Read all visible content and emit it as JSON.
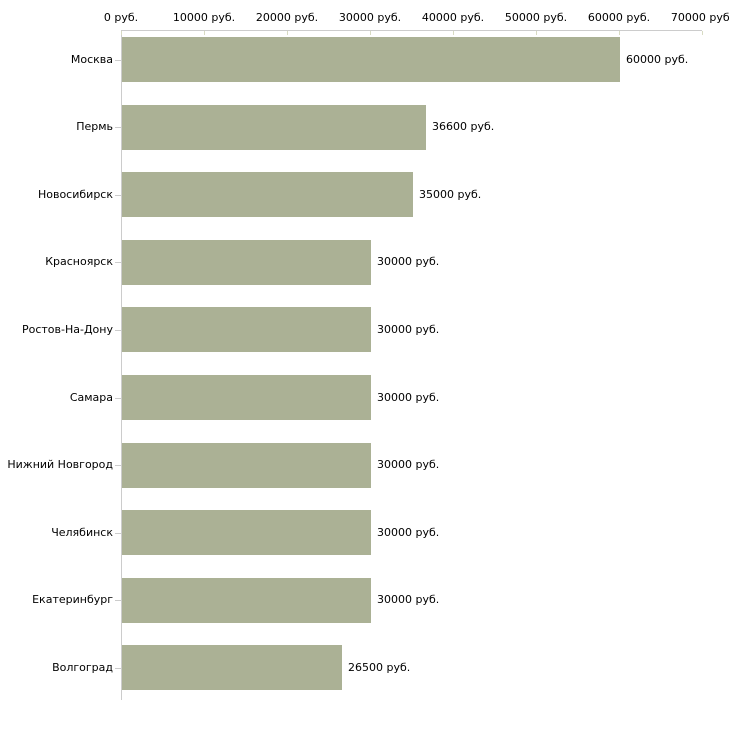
{
  "chart_data": {
    "type": "bar",
    "orientation": "horizontal",
    "title": "",
    "xlabel": "",
    "ylabel": "",
    "categories": [
      "Москва",
      "Пермь",
      "Новосибирск",
      "Красноярск",
      "Ростов-На-Дону",
      "Самара",
      "Нижний Новгород",
      "Челябинск",
      "Екатеринбург",
      "Волгоград"
    ],
    "values": [
      60000,
      36600,
      35000,
      30000,
      30000,
      30000,
      30000,
      30000,
      30000,
      26500
    ],
    "value_labels": [
      "60000 руб.",
      "36600 руб.",
      "35000 руб.",
      "30000 руб.",
      "30000 руб.",
      "30000 руб.",
      "30000 руб.",
      "30000 руб.",
      "30000 руб.",
      "26500 руб."
    ],
    "x_ticks": [
      0,
      10000,
      20000,
      30000,
      40000,
      50000,
      60000,
      70000
    ],
    "x_tick_labels": [
      "0 руб.",
      "10000 руб.",
      "20000 руб.",
      "30000 руб.",
      "40000 руб.",
      "50000 руб.",
      "60000 руб.",
      "70000 руб."
    ],
    "xlim": [
      0,
      70000
    ],
    "unit_suffix": " руб.",
    "grid": false,
    "legend": false,
    "colors": {
      "bar_fill": "#abb195",
      "axis_line": "#cccccc",
      "x_tick_mark": "#d8dbc3",
      "category_tick_mark": "#cccccc",
      "text": "#000000",
      "background": "#ffffff"
    }
  }
}
